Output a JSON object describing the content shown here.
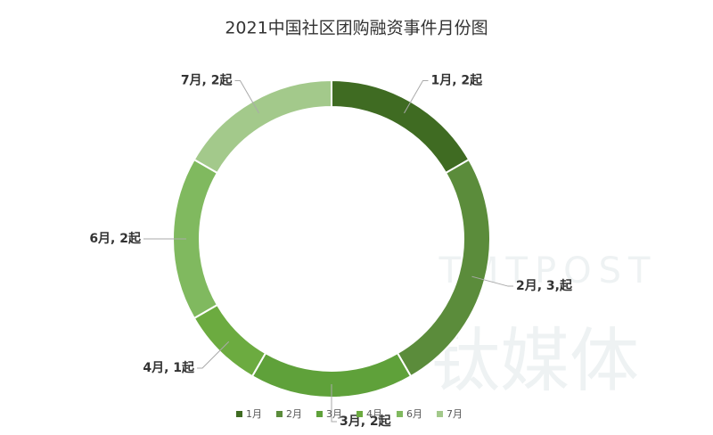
{
  "chart_data": {
    "type": "donut",
    "title": "2021中国社区团购融资事件月份图",
    "categories": [
      "1月",
      "2月",
      "3月",
      "4月",
      "6月",
      "7月"
    ],
    "values": [
      2,
      3,
      2,
      1,
      2,
      2
    ],
    "value_labels": [
      "1月, 2起",
      "2月, 3,起",
      "3月, 2起",
      "4月, 1起",
      "6月, 2起",
      "7月, 2起"
    ],
    "colors": [
      "#3f6b22",
      "#5b8c3b",
      "#5fa13a",
      "#6cab40",
      "#80b95f",
      "#a3c98b"
    ],
    "legend": "bottom",
    "watermark": [
      "TMTPOST",
      "钛媒体"
    ]
  }
}
